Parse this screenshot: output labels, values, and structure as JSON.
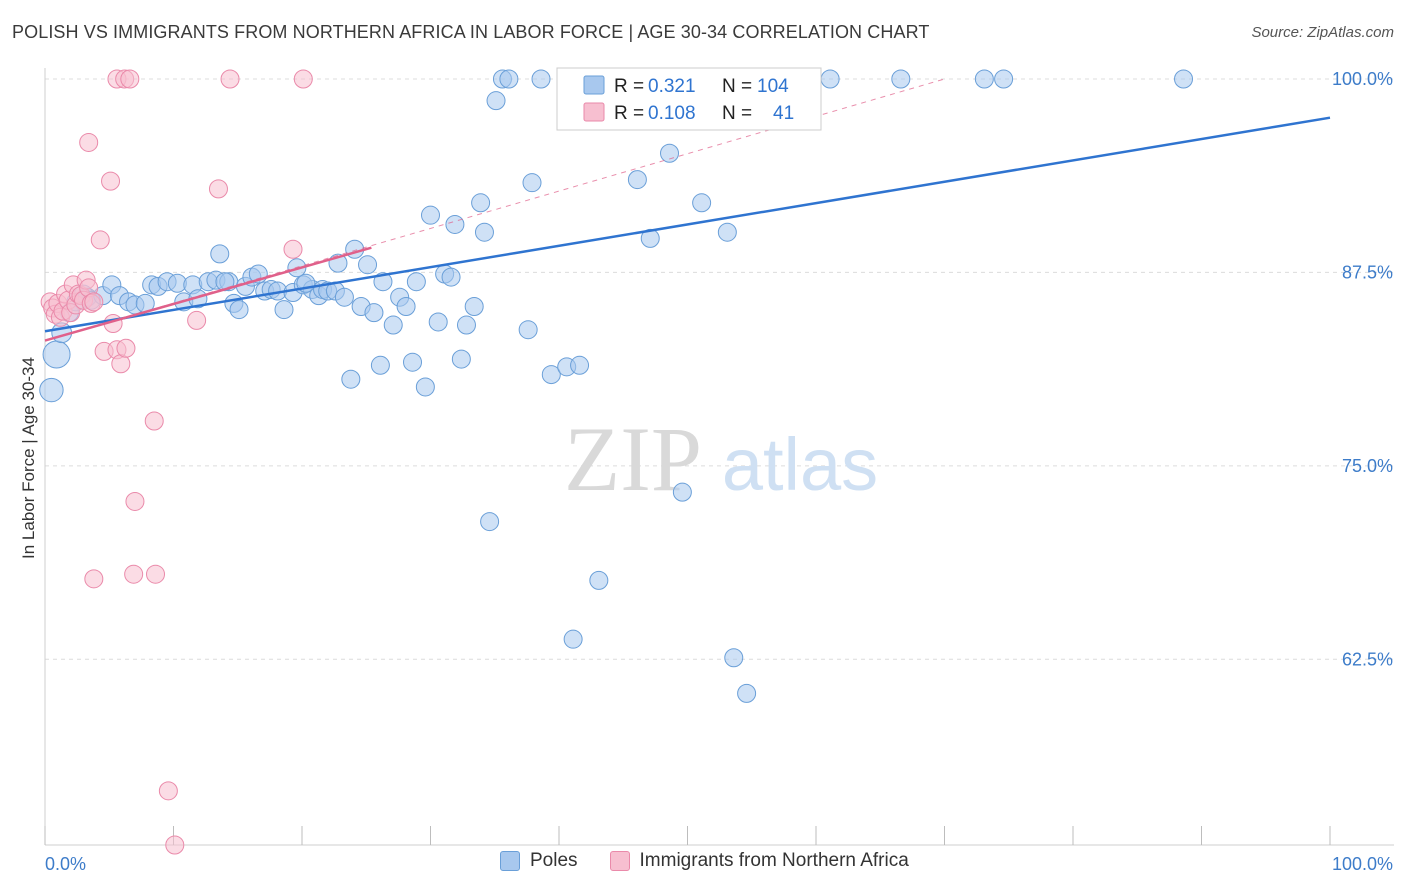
{
  "title": "POLISH VS IMMIGRANTS FROM NORTHERN AFRICA IN LABOR FORCE | AGE 30-34 CORRELATION CHART",
  "source": "Source: ZipAtlas.com",
  "colors": {
    "poles_fill": "#a8c8ee",
    "poles_stroke": "#6a9fd8",
    "poles_line": "#2f74d0",
    "immig_fill": "#f7bfd0",
    "immig_stroke": "#ea8aaa",
    "immig_line": "#e0608a",
    "tick_label": "#3d7cc9",
    "grid": "#dcdcdc"
  },
  "legend_box": {
    "rows": [
      {
        "r_label": "R =",
        "r_value": "0.321",
        "n_label": "N =",
        "n_value": "104"
      },
      {
        "r_label": "R =",
        "r_value": "0.108",
        "n_label": "N =",
        "n_value": "41"
      }
    ]
  },
  "legend_bottom": {
    "poles": "Poles",
    "immig": "Immigrants from Northern Africa"
  },
  "watermark": {
    "zip": "ZIP",
    "atlas": "atlas"
  },
  "chart_data": {
    "type": "scatter",
    "title": "POLISH VS IMMIGRANTS FROM NORTHERN AFRICA IN LABOR FORCE | AGE 30-34 CORRELATION CHART",
    "xlabel": "",
    "ylabel": "In Labor Force | Age 30-34",
    "xlim": [
      0,
      100
    ],
    "ylim": [
      50.5,
      101
    ],
    "x_tick_labels": [
      "0.0%",
      "100.0%"
    ],
    "y_ticks": [
      62.5,
      75.0,
      87.5,
      100.0
    ],
    "y_tick_labels": [
      "62.5%",
      "75.0%",
      "87.5%",
      "100.0%"
    ],
    "grid": true,
    "legend": "top-center",
    "series": [
      {
        "name": "Poles",
        "R": 0.321,
        "N": 104,
        "trend": {
          "x": [
            0,
            100
          ],
          "y": [
            83.7,
            97.5
          ]
        },
        "points": [
          [
            0.5,
            79.9,
            1.3
          ],
          [
            0.9,
            82.2,
            1.5
          ],
          [
            1.3,
            83.6,
            1.1
          ],
          [
            1.9,
            84.9,
            1.0
          ],
          [
            2.4,
            85.6,
            1.0
          ],
          [
            3.0,
            86.1,
            1.0
          ],
          [
            3.3,
            85.9,
            1.0
          ],
          [
            3.6,
            85.7,
            1.0
          ],
          [
            4.5,
            86.0,
            1.0
          ],
          [
            5.2,
            86.7,
            1.0
          ],
          [
            5.8,
            86.0,
            1.0
          ],
          [
            6.5,
            85.6,
            1.0
          ],
          [
            7.0,
            85.4,
            1.0
          ],
          [
            7.8,
            85.5,
            1.0
          ],
          [
            8.3,
            86.7,
            1.0
          ],
          [
            8.8,
            86.6,
            1.0
          ],
          [
            9.5,
            86.9,
            1.0
          ],
          [
            10.3,
            86.8,
            1.0
          ],
          [
            10.8,
            85.6,
            1.0
          ],
          [
            11.5,
            86.7,
            1.0
          ],
          [
            11.9,
            85.8,
            1.0
          ],
          [
            12.7,
            86.9,
            1.0
          ],
          [
            13.3,
            87.0,
            1.0
          ],
          [
            13.6,
            88.7,
            1.0
          ],
          [
            14.3,
            86.9,
            1.0
          ],
          [
            14.0,
            86.9,
            1.0
          ],
          [
            14.7,
            85.5,
            1.0
          ],
          [
            15.1,
            85.1,
            1.0
          ],
          [
            15.6,
            86.6,
            1.0
          ],
          [
            16.1,
            87.2,
            1.0
          ],
          [
            16.6,
            87.4,
            1.0
          ],
          [
            17.1,
            86.3,
            1.0
          ],
          [
            17.6,
            86.4,
            1.0
          ],
          [
            18.1,
            86.3,
            1.0
          ],
          [
            18.6,
            85.1,
            1.0
          ],
          [
            19.3,
            86.2,
            1.0
          ],
          [
            19.6,
            87.8,
            1.0
          ],
          [
            20.1,
            86.7,
            1.0
          ],
          [
            20.8,
            86.4,
            1.0
          ],
          [
            20.3,
            86.8,
            1.0
          ],
          [
            21.3,
            86.0,
            1.0
          ],
          [
            21.6,
            86.4,
            1.0
          ],
          [
            22.0,
            86.3,
            1.0
          ],
          [
            22.6,
            86.3,
            1.0
          ],
          [
            22.8,
            88.1,
            1.0
          ],
          [
            23.3,
            85.9,
            1.0
          ],
          [
            23.8,
            80.6,
            1.0
          ],
          [
            24.1,
            89.0,
            1.0
          ],
          [
            24.6,
            85.3,
            1.0
          ],
          [
            25.1,
            88.0,
            1.0
          ],
          [
            25.6,
            84.9,
            1.0
          ],
          [
            26.1,
            81.5,
            1.0
          ],
          [
            26.3,
            86.9,
            1.0
          ],
          [
            27.1,
            84.1,
            1.0
          ],
          [
            27.6,
            85.9,
            1.0
          ],
          [
            28.1,
            85.3,
            1.0
          ],
          [
            28.6,
            81.7,
            1.0
          ],
          [
            28.9,
            86.9,
            1.0
          ],
          [
            29.6,
            80.1,
            1.0
          ],
          [
            30.0,
            91.2,
            1.0
          ],
          [
            30.6,
            84.3,
            1.0
          ],
          [
            31.1,
            87.4,
            1.0
          ],
          [
            31.6,
            87.2,
            1.0
          ],
          [
            31.9,
            90.6,
            1.0
          ],
          [
            32.4,
            81.9,
            1.0
          ],
          [
            32.8,
            84.1,
            1.0
          ],
          [
            33.4,
            85.3,
            1.0
          ],
          [
            33.9,
            92.0,
            1.0
          ],
          [
            34.2,
            90.1,
            1.0
          ],
          [
            34.6,
            71.4,
            1.0
          ],
          [
            35.1,
            98.6,
            1.0
          ],
          [
            35.6,
            100.0,
            1.0
          ],
          [
            36.1,
            100.0,
            1.0
          ],
          [
            37.6,
            83.8,
            1.0
          ],
          [
            37.9,
            93.3,
            1.0
          ],
          [
            38.6,
            100.0,
            1.0
          ],
          [
            39.4,
            80.9,
            1.0
          ],
          [
            40.6,
            81.4,
            1.0
          ],
          [
            41.6,
            81.5,
            1.0
          ],
          [
            41.1,
            63.8,
            1.0
          ],
          [
            42.1,
            100.0,
            1.0
          ],
          [
            43.1,
            67.6,
            1.0
          ],
          [
            44.1,
            100.0,
            1.0
          ],
          [
            44.6,
            100.0,
            1.0
          ],
          [
            45.6,
            100.0,
            1.0
          ],
          [
            46.1,
            93.5,
            1.0
          ],
          [
            47.1,
            89.7,
            1.0
          ],
          [
            48.6,
            95.2,
            1.0
          ],
          [
            49.6,
            73.3,
            1.0
          ],
          [
            50.4,
            100.0,
            1.0
          ],
          [
            51.1,
            92.0,
            1.0
          ],
          [
            53.1,
            90.1,
            1.0
          ],
          [
            53.6,
            62.6,
            1.0
          ],
          [
            54.6,
            60.3,
            1.0
          ],
          [
            56.1,
            100.0,
            1.0
          ],
          [
            57.1,
            100.0,
            1.0
          ],
          [
            61.1,
            100.0,
            1.0
          ],
          [
            66.6,
            100.0,
            1.0
          ],
          [
            73.1,
            100.0,
            1.0
          ],
          [
            74.6,
            100.0,
            1.0
          ],
          [
            88.6,
            100.0,
            1.0
          ]
        ]
      },
      {
        "name": "Immigrants from Northern Africa",
        "R": 0.108,
        "N": 41,
        "trend": {
          "x": [
            0,
            25.4
          ],
          "y": [
            83.1,
            89.1
          ]
        },
        "trend_extended": {
          "x": [
            0,
            70
          ],
          "y": [
            83.1,
            100.0
          ]
        },
        "points": [
          [
            0.4,
            85.6,
            1.0
          ],
          [
            0.6,
            85.2,
            1.0
          ],
          [
            0.8,
            84.8,
            1.0
          ],
          [
            1.0,
            85.5,
            1.0
          ],
          [
            1.2,
            84.6,
            1.0
          ],
          [
            1.4,
            85.0,
            1.0
          ],
          [
            1.6,
            86.1,
            1.0
          ],
          [
            1.8,
            85.7,
            1.0
          ],
          [
            2.0,
            84.9,
            1.0
          ],
          [
            2.2,
            86.7,
            1.0
          ],
          [
            2.4,
            85.4,
            1.0
          ],
          [
            2.6,
            86.1,
            1.0
          ],
          [
            2.8,
            86.0,
            1.0
          ],
          [
            3.0,
            85.7,
            1.0
          ],
          [
            3.2,
            87.0,
            1.0
          ],
          [
            3.4,
            86.5,
            1.0
          ],
          [
            3.6,
            85.5,
            1.0
          ],
          [
            3.8,
            85.6,
            1.0
          ],
          [
            3.4,
            95.9,
            1.0
          ],
          [
            4.3,
            89.6,
            1.0
          ],
          [
            4.6,
            82.4,
            1.0
          ],
          [
            5.1,
            93.4,
            1.0
          ],
          [
            5.3,
            84.2,
            1.0
          ],
          [
            5.6,
            82.5,
            1.0
          ],
          [
            5.9,
            81.6,
            1.0
          ],
          [
            6.3,
            82.6,
            1.0
          ],
          [
            5.6,
            100.0,
            1.0
          ],
          [
            6.2,
            100.0,
            1.0
          ],
          [
            6.6,
            100.0,
            1.0
          ],
          [
            7.0,
            72.7,
            1.0
          ],
          [
            3.8,
            67.7,
            1.0
          ],
          [
            6.9,
            68.0,
            1.0
          ],
          [
            8.6,
            68.0,
            1.0
          ],
          [
            8.5,
            77.9,
            1.0
          ],
          [
            9.6,
            54.0,
            1.0
          ],
          [
            10.1,
            50.5,
            1.0
          ],
          [
            11.8,
            84.4,
            1.0
          ],
          [
            13.5,
            92.9,
            1.0
          ],
          [
            14.4,
            100.0,
            1.0
          ],
          [
            20.1,
            100.0,
            1.0
          ],
          [
            19.3,
            89.0,
            1.0
          ]
        ]
      }
    ]
  }
}
